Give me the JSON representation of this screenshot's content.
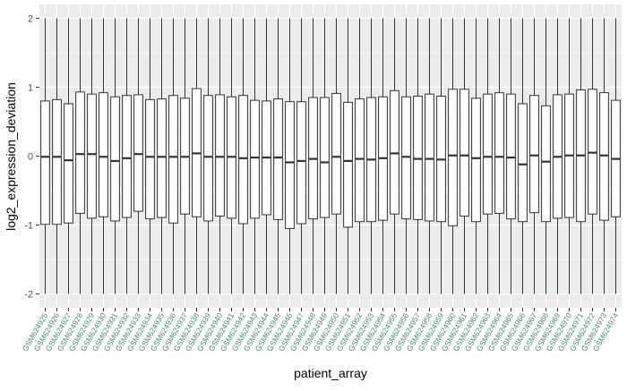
{
  "chart_data": {
    "type": "box",
    "title": "",
    "xlabel": "patient_array",
    "ylabel": "log2_expression_deviation",
    "ylim": [
      -2.2,
      2.2
    ],
    "yticks": [
      -2,
      -1,
      0,
      1,
      2
    ],
    "grid": true,
    "legend": "none",
    "colors": {
      "panel": "#EBEBEB",
      "gridline": "#FFFFFF",
      "box_fill": "#FFFFFF",
      "box_line": "#333333",
      "x_tick_label": "#3B8F6E",
      "text": "#000000",
      "tick_text": "#4D4D4D"
    },
    "categories": [
      "GSM624925",
      "GSM624926",
      "GSM624927",
      "GSM624928",
      "GSM624929",
      "GSM624930",
      "GSM624931",
      "GSM624932",
      "GSM624933",
      "GSM624934",
      "GSM624935",
      "GSM624936",
      "GSM624937",
      "GSM624938",
      "GSM624939",
      "GSM624940",
      "GSM624941",
      "GSM624942",
      "GSM624943",
      "GSM624944",
      "GSM624945",
      "GSM624946",
      "GSM624947",
      "GSM624948",
      "GSM624949",
      "GSM624950",
      "GSM624951",
      "GSM624952",
      "GSM624953",
      "GSM624954",
      "GSM624955",
      "GSM624956",
      "GSM624957",
      "GSM624958",
      "GSM624959",
      "GSM624960",
      "GSM624961",
      "GSM624962",
      "GSM624963",
      "GSM624964",
      "GSM624965",
      "GSM624966",
      "GSM624967",
      "GSM624968",
      "GSM624969",
      "GSM624970",
      "GSM624971",
      "GSM624972",
      "GSM624973",
      "GSM624974"
    ],
    "boxes": [
      {
        "min": -2.0,
        "q1": -0.99,
        "median": -0.01,
        "q3": 0.8,
        "max": 2.0
      },
      {
        "min": -2.0,
        "q1": -0.99,
        "median": -0.01,
        "q3": 0.82,
        "max": 2.0
      },
      {
        "min": -2.0,
        "q1": -0.97,
        "median": -0.06,
        "q3": 0.76,
        "max": 2.0
      },
      {
        "min": -2.0,
        "q1": -0.83,
        "median": 0.03,
        "q3": 0.93,
        "max": 2.0
      },
      {
        "min": -2.0,
        "q1": -0.9,
        "median": 0.03,
        "q3": 0.9,
        "max": 2.0
      },
      {
        "min": -2.0,
        "q1": -0.88,
        "median": -0.01,
        "q3": 0.92,
        "max": 2.0
      },
      {
        "min": -2.0,
        "q1": -0.94,
        "median": -0.07,
        "q3": 0.86,
        "max": 2.0
      },
      {
        "min": -2.0,
        "q1": -0.89,
        "median": -0.03,
        "q3": 0.88,
        "max": 2.0
      },
      {
        "min": -2.0,
        "q1": -0.8,
        "median": 0.03,
        "q3": 0.89,
        "max": 2.0
      },
      {
        "min": -2.0,
        "q1": -0.91,
        "median": -0.01,
        "q3": 0.82,
        "max": 2.0
      },
      {
        "min": -2.0,
        "q1": -0.89,
        "median": -0.01,
        "q3": 0.83,
        "max": 2.0
      },
      {
        "min": -2.0,
        "q1": -0.97,
        "median": -0.01,
        "q3": 0.88,
        "max": 2.0
      },
      {
        "min": -2.0,
        "q1": -0.84,
        "median": -0.01,
        "q3": 0.84,
        "max": 2.0
      },
      {
        "min": -2.0,
        "q1": -0.88,
        "median": 0.04,
        "q3": 0.98,
        "max": 2.0
      },
      {
        "min": -2.0,
        "q1": -0.94,
        "median": -0.01,
        "q3": 0.88,
        "max": 2.0
      },
      {
        "min": -2.0,
        "q1": -0.87,
        "median": -0.01,
        "q3": 0.89,
        "max": 2.0
      },
      {
        "min": -2.0,
        "q1": -0.9,
        "median": -0.01,
        "q3": 0.86,
        "max": 2.0
      },
      {
        "min": -2.0,
        "q1": -0.98,
        "median": -0.03,
        "q3": 0.88,
        "max": 2.0
      },
      {
        "min": -2.0,
        "q1": -0.9,
        "median": -0.02,
        "q3": 0.81,
        "max": 2.0
      },
      {
        "min": -2.0,
        "q1": -0.85,
        "median": -0.02,
        "q3": 0.8,
        "max": 2.0
      },
      {
        "min": -2.0,
        "q1": -0.92,
        "median": -0.02,
        "q3": 0.83,
        "max": 2.0
      },
      {
        "min": -2.0,
        "q1": -1.05,
        "median": -0.09,
        "q3": 0.79,
        "max": 2.0
      },
      {
        "min": -2.0,
        "q1": -0.98,
        "median": -0.07,
        "q3": 0.79,
        "max": 2.0
      },
      {
        "min": -2.0,
        "q1": -0.91,
        "median": -0.04,
        "q3": 0.85,
        "max": 2.0
      },
      {
        "min": -2.0,
        "q1": -0.89,
        "median": -0.09,
        "q3": 0.85,
        "max": 2.0
      },
      {
        "min": -2.0,
        "q1": -0.84,
        "median": -0.01,
        "q3": 0.91,
        "max": 2.0
      },
      {
        "min": -2.0,
        "q1": -1.03,
        "median": -0.07,
        "q3": 0.78,
        "max": 2.0
      },
      {
        "min": -2.0,
        "q1": -0.95,
        "median": -0.04,
        "q3": 0.83,
        "max": 2.0
      },
      {
        "min": -2.0,
        "q1": -0.95,
        "median": -0.05,
        "q3": 0.85,
        "max": 2.0
      },
      {
        "min": -2.0,
        "q1": -0.93,
        "median": -0.03,
        "q3": 0.86,
        "max": 2.0
      },
      {
        "min": -2.0,
        "q1": -0.84,
        "median": 0.04,
        "q3": 0.95,
        "max": 2.0
      },
      {
        "min": -2.0,
        "q1": -0.91,
        "median": -0.01,
        "q3": 0.86,
        "max": 2.0
      },
      {
        "min": -2.0,
        "q1": -0.92,
        "median": -0.04,
        "q3": 0.87,
        "max": 2.0
      },
      {
        "min": -2.0,
        "q1": -0.94,
        "median": -0.04,
        "q3": 0.9,
        "max": 2.0
      },
      {
        "min": -2.0,
        "q1": -0.95,
        "median": -0.05,
        "q3": 0.87,
        "max": 2.0
      },
      {
        "min": -2.0,
        "q1": -1.01,
        "median": 0.01,
        "q3": 0.97,
        "max": 2.0
      },
      {
        "min": -2.0,
        "q1": -0.87,
        "median": 0.01,
        "q3": 0.97,
        "max": 2.0
      },
      {
        "min": -2.0,
        "q1": -0.95,
        "median": -0.03,
        "q3": 0.84,
        "max": 2.0
      },
      {
        "min": -2.0,
        "q1": -0.84,
        "median": -0.01,
        "q3": 0.9,
        "max": 2.0
      },
      {
        "min": -2.0,
        "q1": -0.83,
        "median": -0.01,
        "q3": 0.92,
        "max": 2.0
      },
      {
        "min": -2.0,
        "q1": -0.91,
        "median": -0.02,
        "q3": 0.9,
        "max": 2.0
      },
      {
        "min": -2.0,
        "q1": -0.95,
        "median": -0.12,
        "q3": 0.76,
        "max": 2.0
      },
      {
        "min": -2.0,
        "q1": -0.82,
        "median": 0.01,
        "q3": 0.88,
        "max": 2.0
      },
      {
        "min": -2.0,
        "q1": -0.95,
        "median": -0.08,
        "q3": 0.73,
        "max": 2.0
      },
      {
        "min": -2.0,
        "q1": -0.9,
        "median": -0.01,
        "q3": 0.89,
        "max": 2.0
      },
      {
        "min": -2.0,
        "q1": -0.89,
        "median": 0.01,
        "q3": 0.9,
        "max": 2.0
      },
      {
        "min": -2.0,
        "q1": -0.95,
        "median": 0.01,
        "q3": 0.96,
        "max": 2.0
      },
      {
        "min": -2.0,
        "q1": -0.84,
        "median": 0.05,
        "q3": 0.97,
        "max": 2.0
      },
      {
        "min": -2.0,
        "q1": -0.93,
        "median": 0.01,
        "q3": 0.92,
        "max": 2.0
      },
      {
        "min": -2.0,
        "q1": -0.88,
        "median": -0.04,
        "q3": 0.81,
        "max": 2.0
      }
    ]
  }
}
